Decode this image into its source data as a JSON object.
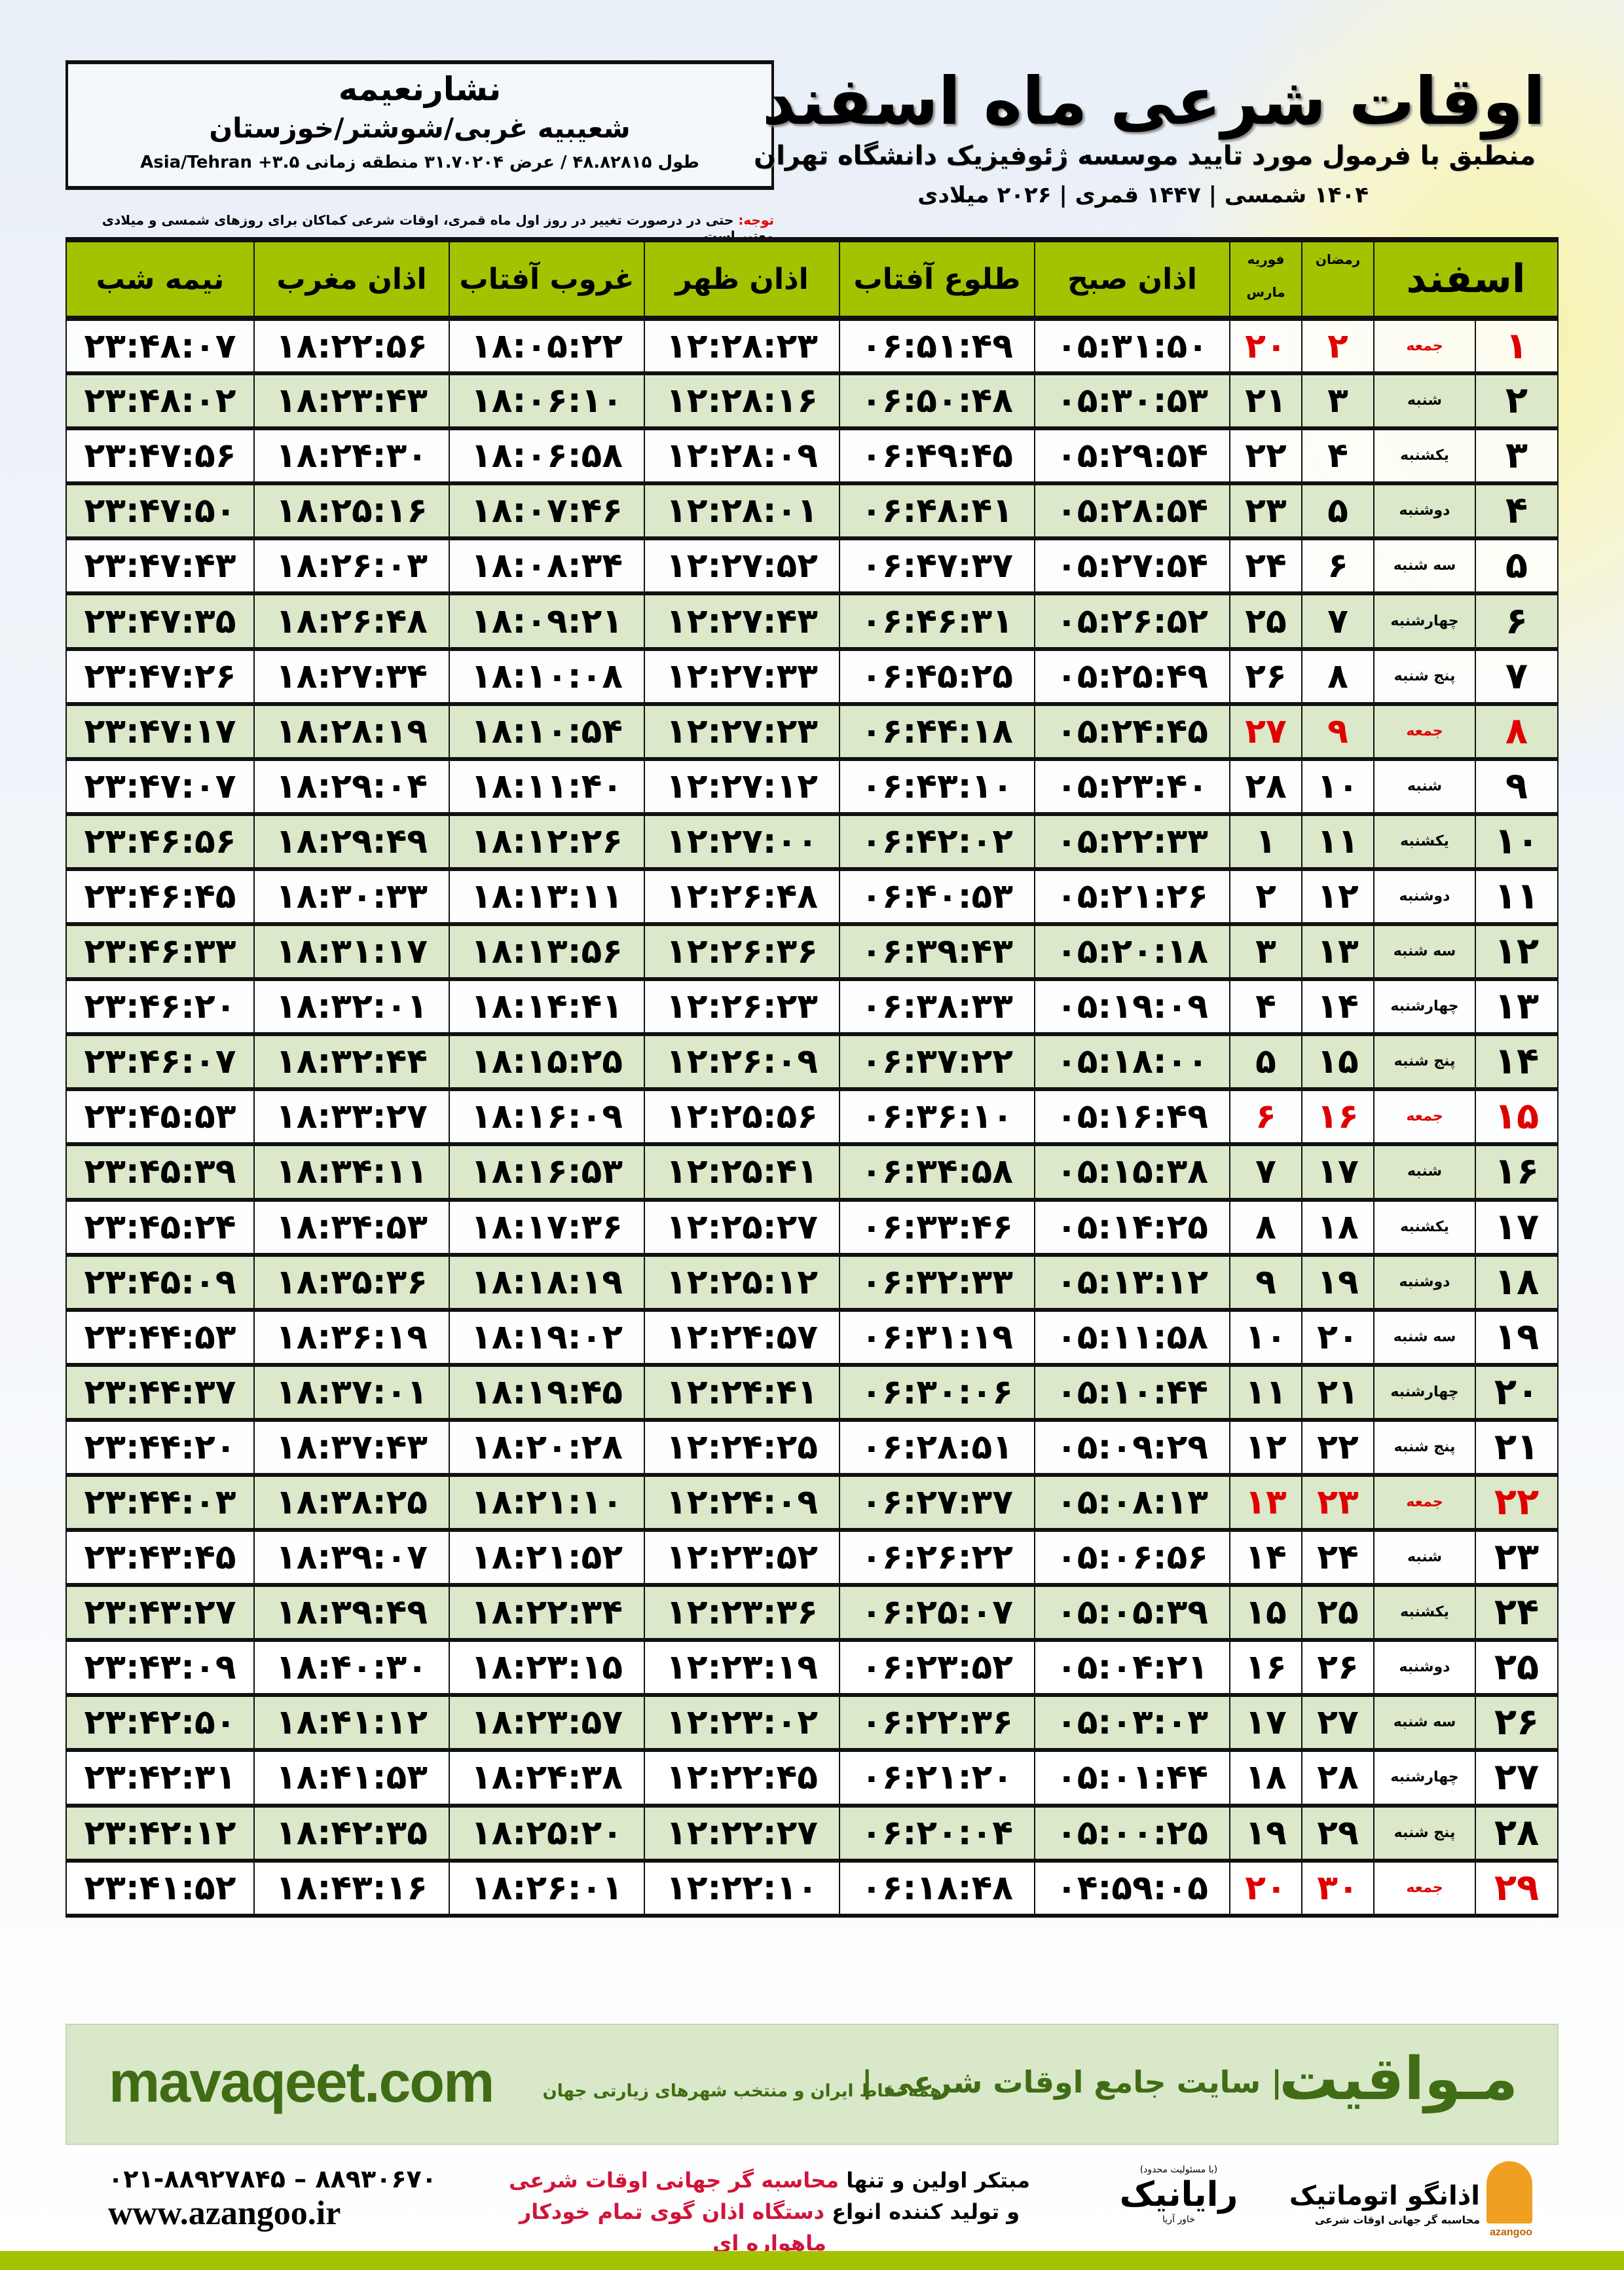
{
  "header": {
    "title": "اوقات شرعی ماه اسفند",
    "subtitle": "منطبق با فرمول مورد تایید موسسه ژئوفیزیک دانشگاه تهران",
    "years": "۱۴۰۴ شمسی | ۱۴۴۷ قمری | ۲۰۲۶ میلادی"
  },
  "location": {
    "city": "نشارنعیمه",
    "region": "شعیبیه غربی/شوشتر/خوزستان",
    "coords": "طول ۴۸.۸۲۸۱۵ / عرض ۳۱.۷۰۲۰۴ منطقه زمانی ۳.۵+ Asia/Tehran"
  },
  "note": {
    "label": "توجه:",
    "text": " حتی در درصورت تغییر در روز اول ماه قمری، اوقات شرعی کماکان برای روزهای شمسی و میلادی معتبر است."
  },
  "colors": {
    "header_green": "#a4c200",
    "row_green": "#dbe8c9",
    "friday_red": "#e00000",
    "brand_green": "#3f6c14"
  },
  "columns": {
    "month": "اسفند",
    "ramadan": "رمضان",
    "feb": "فوریه",
    "march": "مارس",
    "fajr": "اذان صبح",
    "sunrise": "طلوع آفتاب",
    "dhuhr": "اذان ظهر",
    "sunset": "غروب آفتاب",
    "maghrib": "اذان مغرب",
    "midnight": "نیمه شب"
  },
  "rows": [
    [
      "۱",
      "جمعه",
      "۲",
      "۲۰",
      "۰۵:۳۱:۵۰",
      "۰۶:۵۱:۴۹",
      "۱۲:۲۸:۲۳",
      "۱۸:۰۵:۲۲",
      "۱۸:۲۲:۵۶",
      "۲۳:۴۸:۰۷",
      true
    ],
    [
      "۲",
      "شنبه",
      "۳",
      "۲۱",
      "۰۵:۳۰:۵۳",
      "۰۶:۵۰:۴۸",
      "۱۲:۲۸:۱۶",
      "۱۸:۰۶:۱۰",
      "۱۸:۲۳:۴۳",
      "۲۳:۴۸:۰۲",
      false
    ],
    [
      "۳",
      "یکشنبه",
      "۴",
      "۲۲",
      "۰۵:۲۹:۵۴",
      "۰۶:۴۹:۴۵",
      "۱۲:۲۸:۰۹",
      "۱۸:۰۶:۵۸",
      "۱۸:۲۴:۳۰",
      "۲۳:۴۷:۵۶",
      false
    ],
    [
      "۴",
      "دوشنبه",
      "۵",
      "۲۳",
      "۰۵:۲۸:۵۴",
      "۰۶:۴۸:۴۱",
      "۱۲:۲۸:۰۱",
      "۱۸:۰۷:۴۶",
      "۱۸:۲۵:۱۶",
      "۲۳:۴۷:۵۰",
      false
    ],
    [
      "۵",
      "سه شنبه",
      "۶",
      "۲۴",
      "۰۵:۲۷:۵۴",
      "۰۶:۴۷:۳۷",
      "۱۲:۲۷:۵۲",
      "۱۸:۰۸:۳۴",
      "۱۸:۲۶:۰۳",
      "۲۳:۴۷:۴۳",
      false
    ],
    [
      "۶",
      "چهارشنبه",
      "۷",
      "۲۵",
      "۰۵:۲۶:۵۲",
      "۰۶:۴۶:۳۱",
      "۱۲:۲۷:۴۳",
      "۱۸:۰۹:۲۱",
      "۱۸:۲۶:۴۸",
      "۲۳:۴۷:۳۵",
      false
    ],
    [
      "۷",
      "پنج شنبه",
      "۸",
      "۲۶",
      "۰۵:۲۵:۴۹",
      "۰۶:۴۵:۲۵",
      "۱۲:۲۷:۳۳",
      "۱۸:۱۰:۰۸",
      "۱۸:۲۷:۳۴",
      "۲۳:۴۷:۲۶",
      false
    ],
    [
      "۸",
      "جمعه",
      "۹",
      "۲۷",
      "۰۵:۲۴:۴۵",
      "۰۶:۴۴:۱۸",
      "۱۲:۲۷:۲۳",
      "۱۸:۱۰:۵۴",
      "۱۸:۲۸:۱۹",
      "۲۳:۴۷:۱۷",
      true
    ],
    [
      "۹",
      "شنبه",
      "۱۰",
      "۲۸",
      "۰۵:۲۳:۴۰",
      "۰۶:۴۳:۱۰",
      "۱۲:۲۷:۱۲",
      "۱۸:۱۱:۴۰",
      "۱۸:۲۹:۰۴",
      "۲۳:۴۷:۰۷",
      false
    ],
    [
      "۱۰",
      "یکشنبه",
      "۱۱",
      "۱",
      "۰۵:۲۲:۳۳",
      "۰۶:۴۲:۰۲",
      "۱۲:۲۷:۰۰",
      "۱۸:۱۲:۲۶",
      "۱۸:۲۹:۴۹",
      "۲۳:۴۶:۵۶",
      false
    ],
    [
      "۱۱",
      "دوشنبه",
      "۱۲",
      "۲",
      "۰۵:۲۱:۲۶",
      "۰۶:۴۰:۵۳",
      "۱۲:۲۶:۴۸",
      "۱۸:۱۳:۱۱",
      "۱۸:۳۰:۳۳",
      "۲۳:۴۶:۴۵",
      false
    ],
    [
      "۱۲",
      "سه شنبه",
      "۱۳",
      "۳",
      "۰۵:۲۰:۱۸",
      "۰۶:۳۹:۴۳",
      "۱۲:۲۶:۳۶",
      "۱۸:۱۳:۵۶",
      "۱۸:۳۱:۱۷",
      "۲۳:۴۶:۳۳",
      false
    ],
    [
      "۱۳",
      "چهارشنبه",
      "۱۴",
      "۴",
      "۰۵:۱۹:۰۹",
      "۰۶:۳۸:۳۳",
      "۱۲:۲۶:۲۳",
      "۱۸:۱۴:۴۱",
      "۱۸:۳۲:۰۱",
      "۲۳:۴۶:۲۰",
      false
    ],
    [
      "۱۴",
      "پنج شنبه",
      "۱۵",
      "۵",
      "۰۵:۱۸:۰۰",
      "۰۶:۳۷:۲۲",
      "۱۲:۲۶:۰۹",
      "۱۸:۱۵:۲۵",
      "۱۸:۳۲:۴۴",
      "۲۳:۴۶:۰۷",
      false
    ],
    [
      "۱۵",
      "جمعه",
      "۱۶",
      "۶",
      "۰۵:۱۶:۴۹",
      "۰۶:۳۶:۱۰",
      "۱۲:۲۵:۵۶",
      "۱۸:۱۶:۰۹",
      "۱۸:۳۳:۲۷",
      "۲۳:۴۵:۵۳",
      true
    ],
    [
      "۱۶",
      "شنبه",
      "۱۷",
      "۷",
      "۰۵:۱۵:۳۸",
      "۰۶:۳۴:۵۸",
      "۱۲:۲۵:۴۱",
      "۱۸:۱۶:۵۳",
      "۱۸:۳۴:۱۱",
      "۲۳:۴۵:۳۹",
      false
    ],
    [
      "۱۷",
      "یکشنبه",
      "۱۸",
      "۸",
      "۰۵:۱۴:۲۵",
      "۰۶:۳۳:۴۶",
      "۱۲:۲۵:۲۷",
      "۱۸:۱۷:۳۶",
      "۱۸:۳۴:۵۳",
      "۲۳:۴۵:۲۴",
      false
    ],
    [
      "۱۸",
      "دوشنبه",
      "۱۹",
      "۹",
      "۰۵:۱۳:۱۲",
      "۰۶:۳۲:۳۳",
      "۱۲:۲۵:۱۲",
      "۱۸:۱۸:۱۹",
      "۱۸:۳۵:۳۶",
      "۲۳:۴۵:۰۹",
      false
    ],
    [
      "۱۹",
      "سه شنبه",
      "۲۰",
      "۱۰",
      "۰۵:۱۱:۵۸",
      "۰۶:۳۱:۱۹",
      "۱۲:۲۴:۵۷",
      "۱۸:۱۹:۰۲",
      "۱۸:۳۶:۱۹",
      "۲۳:۴۴:۵۳",
      false
    ],
    [
      "۲۰",
      "چهارشنبه",
      "۲۱",
      "۱۱",
      "۰۵:۱۰:۴۴",
      "۰۶:۳۰:۰۶",
      "۱۲:۲۴:۴۱",
      "۱۸:۱۹:۴۵",
      "۱۸:۳۷:۰۱",
      "۲۳:۴۴:۳۷",
      false
    ],
    [
      "۲۱",
      "پنج شنبه",
      "۲۲",
      "۱۲",
      "۰۵:۰۹:۲۹",
      "۰۶:۲۸:۵۱",
      "۱۲:۲۴:۲۵",
      "۱۸:۲۰:۲۸",
      "۱۸:۳۷:۴۳",
      "۲۳:۴۴:۲۰",
      false
    ],
    [
      "۲۲",
      "جمعه",
      "۲۳",
      "۱۳",
      "۰۵:۰۸:۱۳",
      "۰۶:۲۷:۳۷",
      "۱۲:۲۴:۰۹",
      "۱۸:۲۱:۱۰",
      "۱۸:۳۸:۲۵",
      "۲۳:۴۴:۰۳",
      true
    ],
    [
      "۲۳",
      "شنبه",
      "۲۴",
      "۱۴",
      "۰۵:۰۶:۵۶",
      "۰۶:۲۶:۲۲",
      "۱۲:۲۳:۵۲",
      "۱۸:۲۱:۵۲",
      "۱۸:۳۹:۰۷",
      "۲۳:۴۳:۴۵",
      false
    ],
    [
      "۲۴",
      "یکشنبه",
      "۲۵",
      "۱۵",
      "۰۵:۰۵:۳۹",
      "۰۶:۲۵:۰۷",
      "۱۲:۲۳:۳۶",
      "۱۸:۲۲:۳۴",
      "۱۸:۳۹:۴۹",
      "۲۳:۴۳:۲۷",
      false
    ],
    [
      "۲۵",
      "دوشنبه",
      "۲۶",
      "۱۶",
      "۰۵:۰۴:۲۱",
      "۰۶:۲۳:۵۲",
      "۱۲:۲۳:۱۹",
      "۱۸:۲۳:۱۵",
      "۱۸:۴۰:۳۰",
      "۲۳:۴۳:۰۹",
      false
    ],
    [
      "۲۶",
      "سه شنبه",
      "۲۷",
      "۱۷",
      "۰۵:۰۳:۰۳",
      "۰۶:۲۲:۳۶",
      "۱۲:۲۳:۰۲",
      "۱۸:۲۳:۵۷",
      "۱۸:۴۱:۱۲",
      "۲۳:۴۲:۵۰",
      false
    ],
    [
      "۲۷",
      "چهارشنبه",
      "۲۸",
      "۱۸",
      "۰۵:۰۱:۴۴",
      "۰۶:۲۱:۲۰",
      "۱۲:۲۲:۴۵",
      "۱۸:۲۴:۳۸",
      "۱۸:۴۱:۵۳",
      "۲۳:۴۲:۳۱",
      false
    ],
    [
      "۲۸",
      "پنج شنبه",
      "۲۹",
      "۱۹",
      "۰۵:۰۰:۲۵",
      "۰۶:۲۰:۰۴",
      "۱۲:۲۲:۲۷",
      "۱۸:۲۵:۲۰",
      "۱۸:۴۲:۳۵",
      "۲۳:۴۲:۱۲",
      false
    ],
    [
      "۲۹",
      "جمعه",
      "۳۰",
      "۲۰",
      "۰۴:۵۹:۰۵",
      "۰۶:۱۸:۴۸",
      "۱۲:۲۲:۱۰",
      "۱۸:۲۶:۰۱",
      "۱۸:۴۳:۱۶",
      "۲۳:۴۱:۵۲",
      true
    ]
  ],
  "footer": {
    "brand": "مـواقیت",
    "tagline": "| سایت جامع اوقات شرعی |",
    "tagline2": "همه نقاط ایران و منتخب شهرهای زیارتی جهان",
    "site": "mavaqeet.com",
    "phone": "۰۲۱-۸۸۹۲۷۸۴۵ – ۸۸۹۳۰۶۷۰",
    "web": "www.azangoo.ir",
    "promo1a": "مبتکر اولین و تنها ",
    "promo1b": "محاسبه گر جهانی اوقات شرعی",
    "promo2a": "و تولید کننده انواع ",
    "promo2b": "دستگاه اذان گوی تمام خودکار ماهواره ای",
    "logo1_top": "(با مسئولیت محدود)",
    "logo1_name": "رایانیک",
    "logo1_sub": "خاور آریا",
    "logo2_name": "اذانگو اتوماتیک",
    "logo2_sub": "محاسبه گر جهانی اوقات شرعی",
    "logo2_latin": "azangoo"
  }
}
